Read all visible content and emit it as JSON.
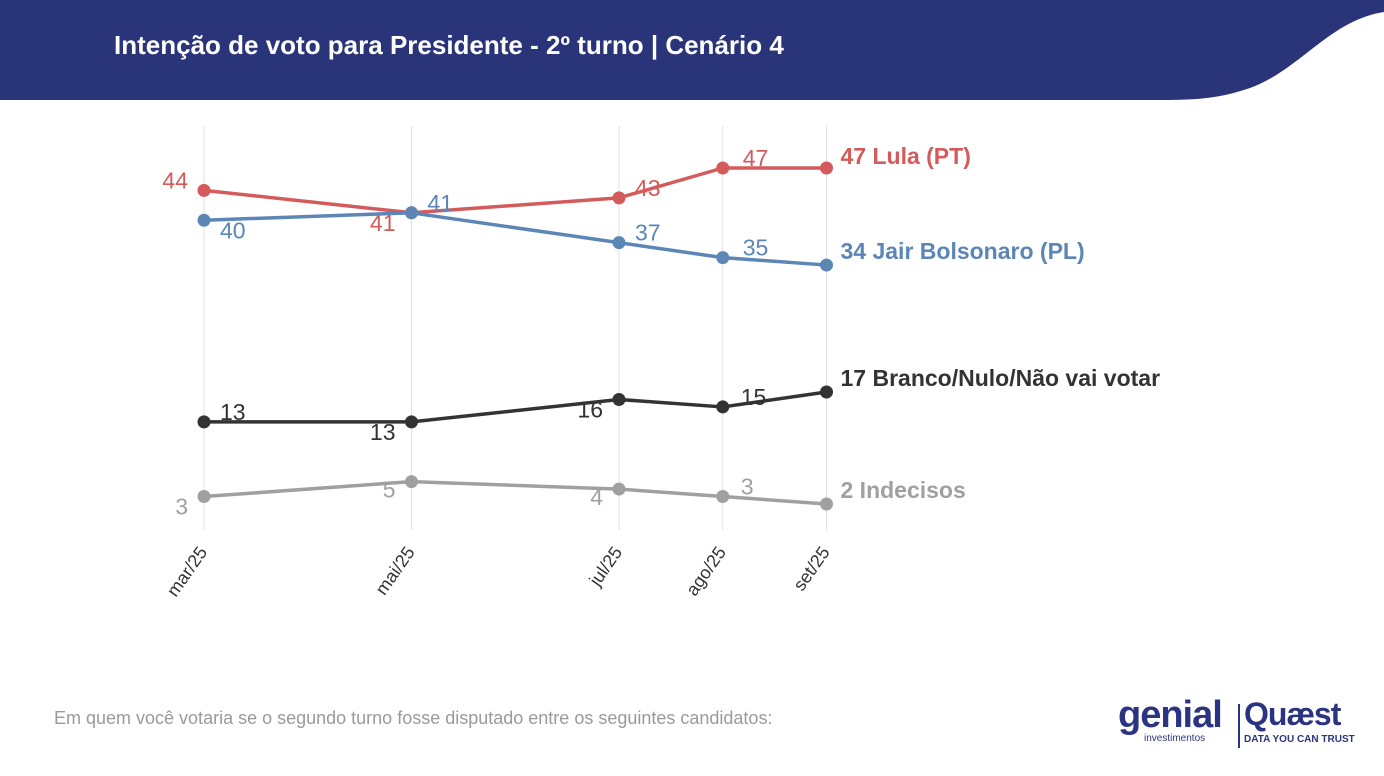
{
  "header": {
    "title": "Intenção de voto para Presidente - 2º turno | Cenário 4",
    "background_color": "#2a3479"
  },
  "chart_data": {
    "type": "line",
    "title": "Intenção de voto para Presidente - 2º turno | Cenário 4",
    "categories": [
      "mar/25",
      "mai/25",
      "jul/25",
      "ago/25",
      "set/25"
    ],
    "x_spacing_note_months": [
      0,
      2,
      4,
      5,
      6
    ],
    "grid": "vertical",
    "series": [
      {
        "name": "Lula (PT)",
        "end_label": "47 Lula (PT)",
        "color": "#d45b5b",
        "values": [
          44,
          41,
          43,
          47,
          47
        ]
      },
      {
        "name": "Jair Bolsonaro (PL)",
        "end_label": "34 Jair Bolsonaro (PL)",
        "color": "#5b86b5",
        "values": [
          40,
          41,
          37,
          35,
          34
        ]
      },
      {
        "name": "Branco/Nulo/Não vai votar",
        "end_label": "17 Branco/Nulo/Não vai votar",
        "color": "#333333",
        "values": [
          13,
          13,
          16,
          15,
          17
        ]
      },
      {
        "name": "Indecisos",
        "end_label": "2 Indecisos",
        "color": "#a0a0a0",
        "values": [
          3,
          5,
          4,
          3,
          2
        ]
      }
    ]
  },
  "footnote": "Em quem você votaria se o segundo turno fosse disputado entre os seguintes candidatos:",
  "logos": {
    "genial_name": "genial",
    "genial_sub": "investimentos",
    "quaest_name": "Quæst",
    "quaest_sub": "DATA YOU CAN TRUST",
    "brand_color": "#2a3480"
  }
}
